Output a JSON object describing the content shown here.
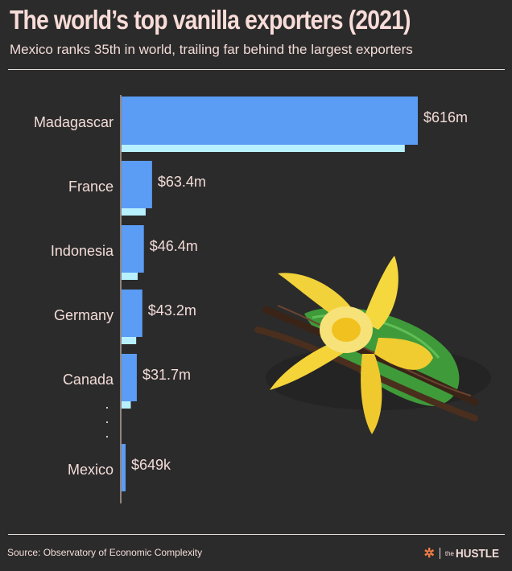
{
  "header": {
    "title": "The world’s top vanilla exporters (2021)",
    "subtitle": "Mexico ranks 35th in world, trailing far behind the largest exporters"
  },
  "chart_data": {
    "type": "bar",
    "orientation": "horizontal",
    "title": "The world’s top vanilla exporters (2021)",
    "subtitle": "Mexico ranks 35th in world, trailing far behind the largest exporters",
    "categories": [
      "Madagascar",
      "France",
      "Indonesia",
      "Germany",
      "Canada",
      "Mexico"
    ],
    "values": [
      616,
      63.4,
      46.4,
      43.2,
      31.7,
      0.649
    ],
    "value_labels": [
      "$616m",
      "$63.4m",
      "$46.4m",
      "$43.2m",
      "$31.7m",
      "$649k"
    ],
    "unit": "USD millions",
    "gap_marker": "·",
    "colors": {
      "bar": "#5b9cf5",
      "bar_shadow": "#b7f0ff",
      "text": "#f3dcd8",
      "background": "#2b2b2b"
    },
    "grid": false,
    "legend": "none"
  },
  "decoration": {
    "illustration": "vanilla-flower-with-pods"
  },
  "footer": {
    "source": "Source: Observatory of Economic Complexity",
    "brand_the": "the",
    "brand_name": "HUSTLE",
    "brand_icon": "hubspot-sprocket-icon"
  }
}
